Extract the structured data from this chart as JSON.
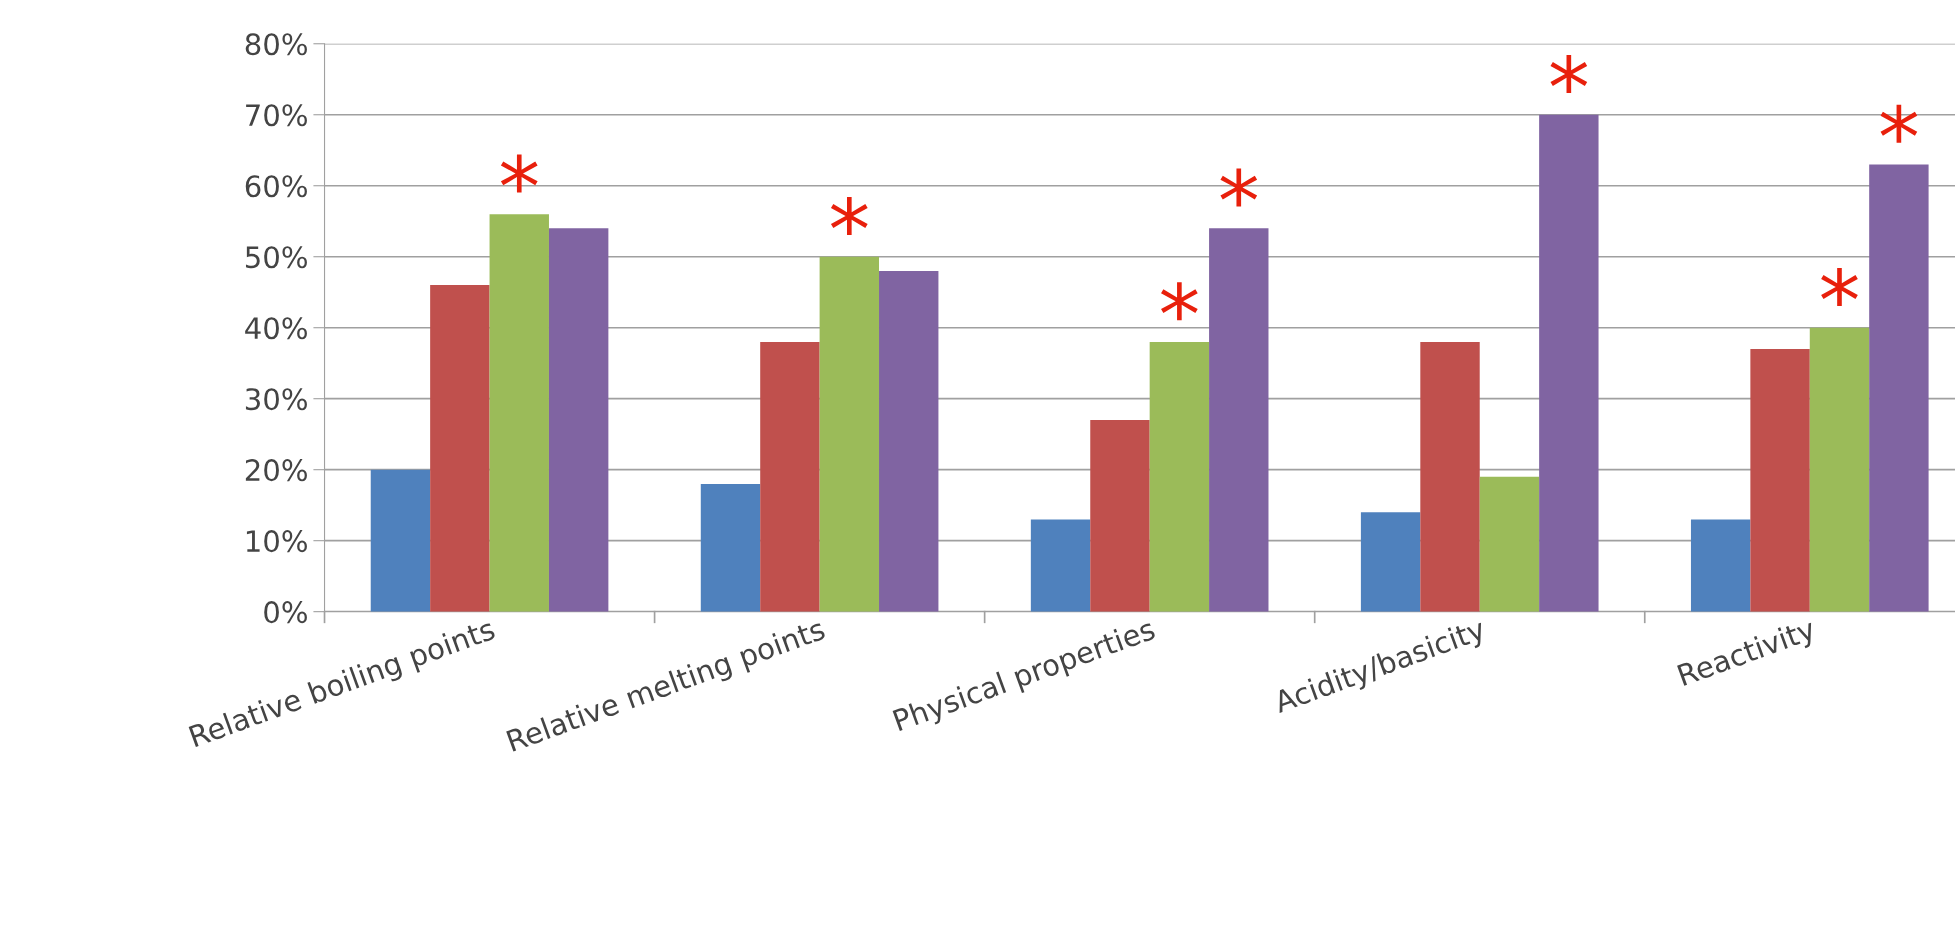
{
  "chart_data": {
    "type": "bar",
    "categories": [
      "Relative boiling points",
      "Relative melting points",
      "Physical properties",
      "Acidity/basicity",
      "Reactivity"
    ],
    "series": [
      {
        "color": "#4f81bd",
        "values": [
          20,
          18,
          13,
          14,
          13
        ]
      },
      {
        "color": "#c0504d",
        "values": [
          46,
          38,
          27,
          38,
          37
        ]
      },
      {
        "color": "#9bbb59",
        "values": [
          56,
          50,
          38,
          19,
          40
        ],
        "value_labels": [
          "*",
          "*",
          "*",
          null,
          "*"
        ]
      },
      {
        "color": "#8064a2",
        "values": [
          54,
          48,
          54,
          70,
          63
        ],
        "value_labels": [
          null,
          null,
          "*",
          "*",
          "*"
        ]
      }
    ],
    "ylim": [
      0,
      80
    ],
    "yticks": [
      {
        "value": 0,
        "label": "0%"
      },
      {
        "value": 10,
        "label": "10%"
      },
      {
        "value": 20,
        "label": "20%"
      },
      {
        "value": 30,
        "label": "30%"
      },
      {
        "value": 40,
        "label": "40%"
      },
      {
        "value": 50,
        "label": "50%"
      },
      {
        "value": 60,
        "label": "60%"
      },
      {
        "value": 70,
        "label": "70%"
      },
      {
        "value": 80,
        "label": "80%"
      }
    ],
    "grid": "y",
    "legend": false
  }
}
